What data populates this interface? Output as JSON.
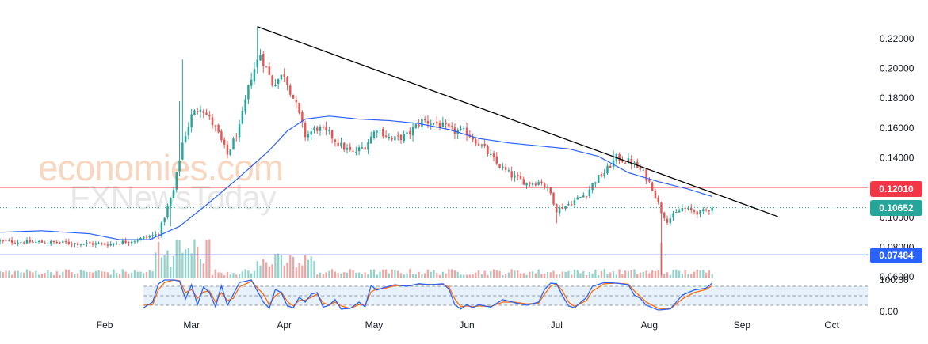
{
  "watermark": {
    "line1": "economies.com",
    "line2": "FXNewsToday"
  },
  "colors": {
    "up": "#26a69a",
    "down": "#ef5350",
    "up_vol": "#8fd3cb",
    "down_vol": "#f5a3a1",
    "ma": "#2962ff",
    "trend": "#000000",
    "resistance": "#f23645",
    "support": "#2962ff",
    "current": "#26a69a",
    "stoch_k": "#2962ff",
    "stoch_d": "#ff6d00"
  },
  "chart_data": {
    "type": "candlestick",
    "x_ticks": [
      "Feb",
      "Mar",
      "Apr",
      "May",
      "Jun",
      "Jul",
      "Aug",
      "Sep",
      "Oct"
    ],
    "y_ticks": [
      "0.22000",
      "0.20000",
      "0.18000",
      "0.16000",
      "0.14000",
      "0.10000",
      "0.08000",
      "0.06000"
    ],
    "ylim": [
      0.058,
      0.23
    ],
    "days_shown": 290,
    "x_tick_day": [
      35,
      64,
      95,
      125,
      156,
      186,
      217,
      248,
      278
    ],
    "price_tags": {
      "resistance": "0.12010",
      "current": "0.10652",
      "support": "0.07484"
    },
    "horizontal_lines": {
      "resistance": 0.1201,
      "support": 0.07484,
      "current": 0.10652
    },
    "trendline": {
      "start": {
        "day": 86,
        "price": 0.228
      },
      "end": {
        "day": 260,
        "price": 0.1005
      }
    },
    "close_anchors": [
      [
        0,
        0.084
      ],
      [
        20,
        0.083
      ],
      [
        36,
        0.082
      ],
      [
        46,
        0.085
      ],
      [
        53,
        0.089
      ],
      [
        58,
        0.118
      ],
      [
        61,
        0.15
      ],
      [
        64,
        0.168
      ],
      [
        67,
        0.175
      ],
      [
        72,
        0.16
      ],
      [
        76,
        0.142
      ],
      [
        80,
        0.16
      ],
      [
        84,
        0.195
      ],
      [
        87,
        0.21
      ],
      [
        91,
        0.19
      ],
      [
        95,
        0.196
      ],
      [
        99,
        0.175
      ],
      [
        102,
        0.155
      ],
      [
        106,
        0.16
      ],
      [
        110,
        0.156
      ],
      [
        114,
        0.148
      ],
      [
        118,
        0.143
      ],
      [
        122,
        0.148
      ],
      [
        126,
        0.16
      ],
      [
        131,
        0.152
      ],
      [
        136,
        0.155
      ],
      [
        141,
        0.165
      ],
      [
        146,
        0.163
      ],
      [
        151,
        0.158
      ],
      [
        156,
        0.157
      ],
      [
        161,
        0.148
      ],
      [
        166,
        0.136
      ],
      [
        171,
        0.128
      ],
      [
        176,
        0.123
      ],
      [
        181,
        0.124
      ],
      [
        184,
        0.116
      ],
      [
        186,
        0.105
      ],
      [
        191,
        0.11
      ],
      [
        196,
        0.116
      ],
      [
        199,
        0.125
      ],
      [
        202,
        0.13
      ],
      [
        206,
        0.14
      ],
      [
        211,
        0.137
      ],
      [
        215,
        0.13
      ],
      [
        218,
        0.12
      ],
      [
        221,
        0.104
      ],
      [
        223,
        0.098
      ],
      [
        228,
        0.106
      ],
      [
        234,
        0.103
      ],
      [
        238,
        0.1065
      ]
    ],
    "ma_anchors": [
      [
        0,
        0.09
      ],
      [
        14,
        0.091
      ],
      [
        30,
        0.089
      ],
      [
        40,
        0.085
      ],
      [
        50,
        0.085
      ],
      [
        60,
        0.094
      ],
      [
        70,
        0.11
      ],
      [
        80,
        0.127
      ],
      [
        90,
        0.145
      ],
      [
        96,
        0.158
      ],
      [
        102,
        0.166
      ],
      [
        110,
        0.168
      ],
      [
        120,
        0.166
      ],
      [
        130,
        0.165
      ],
      [
        140,
        0.163
      ],
      [
        150,
        0.159
      ],
      [
        160,
        0.153
      ],
      [
        170,
        0.15
      ],
      [
        180,
        0.148
      ],
      [
        190,
        0.146
      ],
      [
        200,
        0.141
      ],
      [
        210,
        0.13
      ],
      [
        220,
        0.124
      ],
      [
        230,
        0.119
      ],
      [
        238,
        0.114
      ]
    ],
    "stochastic": {
      "ylim": [
        -10,
        110
      ],
      "y_ticks": [
        "100.00",
        "0.00"
      ],
      "band": [
        20,
        80
      ],
      "k_anchors": [
        [
          48,
          12
        ],
        [
          51,
          30
        ],
        [
          53,
          88
        ],
        [
          55,
          100
        ],
        [
          58,
          100
        ],
        [
          60,
          96
        ],
        [
          62,
          40
        ],
        [
          64,
          85
        ],
        [
          66,
          22
        ],
        [
          68,
          78
        ],
        [
          70,
          60
        ],
        [
          72,
          15
        ],
        [
          74,
          82
        ],
        [
          76,
          20
        ],
        [
          78,
          55
        ],
        [
          80,
          92
        ],
        [
          84,
          100
        ],
        [
          88,
          30
        ],
        [
          90,
          10
        ],
        [
          92,
          70
        ],
        [
          94,
          60
        ],
        [
          96,
          18
        ],
        [
          98,
          12
        ],
        [
          100,
          45
        ],
        [
          102,
          30
        ],
        [
          104,
          55
        ],
        [
          106,
          60
        ],
        [
          108,
          14
        ],
        [
          110,
          20
        ],
        [
          112,
          38
        ],
        [
          114,
          8
        ],
        [
          117,
          10
        ],
        [
          120,
          30
        ],
        [
          122,
          15
        ],
        [
          124,
          82
        ],
        [
          126,
          68
        ],
        [
          128,
          75
        ],
        [
          132,
          85
        ],
        [
          136,
          80
        ],
        [
          140,
          88
        ],
        [
          144,
          85
        ],
        [
          148,
          88
        ],
        [
          150,
          72
        ],
        [
          152,
          22
        ],
        [
          154,
          8
        ],
        [
          156,
          22
        ],
        [
          158,
          12
        ],
        [
          160,
          22
        ],
        [
          164,
          14
        ],
        [
          168,
          38
        ],
        [
          172,
          28
        ],
        [
          176,
          20
        ],
        [
          180,
          30
        ],
        [
          182,
          70
        ],
        [
          184,
          90
        ],
        [
          186,
          88
        ],
        [
          188,
          50
        ],
        [
          190,
          18
        ],
        [
          192,
          12
        ],
        [
          196,
          45
        ],
        [
          198,
          80
        ],
        [
          202,
          92
        ],
        [
          206,
          90
        ],
        [
          210,
          85
        ],
        [
          212,
          52
        ],
        [
          214,
          42
        ],
        [
          216,
          20
        ],
        [
          220,
          5
        ],
        [
          224,
          8
        ],
        [
          228,
          52
        ],
        [
          232,
          68
        ],
        [
          236,
          74
        ],
        [
          238,
          90
        ]
      ],
      "d_anchors": [
        [
          48,
          20
        ],
        [
          51,
          22
        ],
        [
          53,
          70
        ],
        [
          55,
          92
        ],
        [
          58,
          100
        ],
        [
          60,
          98
        ],
        [
          62,
          60
        ],
        [
          64,
          70
        ],
        [
          66,
          42
        ],
        [
          68,
          62
        ],
        [
          70,
          65
        ],
        [
          72,
          30
        ],
        [
          74,
          60
        ],
        [
          76,
          35
        ],
        [
          78,
          42
        ],
        [
          80,
          78
        ],
        [
          84,
          96
        ],
        [
          88,
          55
        ],
        [
          90,
          22
        ],
        [
          92,
          50
        ],
        [
          94,
          62
        ],
        [
          96,
          32
        ],
        [
          98,
          18
        ],
        [
          100,
          35
        ],
        [
          102,
          36
        ],
        [
          104,
          45
        ],
        [
          106,
          55
        ],
        [
          108,
          28
        ],
        [
          110,
          20
        ],
        [
          112,
          30
        ],
        [
          114,
          18
        ],
        [
          117,
          10
        ],
        [
          120,
          22
        ],
        [
          122,
          20
        ],
        [
          124,
          62
        ],
        [
          126,
          72
        ],
        [
          128,
          72
        ],
        [
          132,
          82
        ],
        [
          136,
          82
        ],
        [
          140,
          85
        ],
        [
          144,
          86
        ],
        [
          148,
          86
        ],
        [
          150,
          78
        ],
        [
          152,
          40
        ],
        [
          154,
          15
        ],
        [
          156,
          18
        ],
        [
          158,
          15
        ],
        [
          160,
          18
        ],
        [
          164,
          16
        ],
        [
          168,
          30
        ],
        [
          172,
          30
        ],
        [
          176,
          24
        ],
        [
          180,
          27
        ],
        [
          182,
          55
        ],
        [
          184,
          80
        ],
        [
          186,
          88
        ],
        [
          188,
          65
        ],
        [
          190,
          30
        ],
        [
          192,
          16
        ],
        [
          196,
          35
        ],
        [
          198,
          65
        ],
        [
          202,
          88
        ],
        [
          206,
          90
        ],
        [
          210,
          87
        ],
        [
          212,
          65
        ],
        [
          214,
          48
        ],
        [
          216,
          30
        ],
        [
          220,
          10
        ],
        [
          224,
          8
        ],
        [
          228,
          40
        ],
        [
          232,
          60
        ],
        [
          236,
          70
        ],
        [
          238,
          82
        ]
      ]
    }
  }
}
